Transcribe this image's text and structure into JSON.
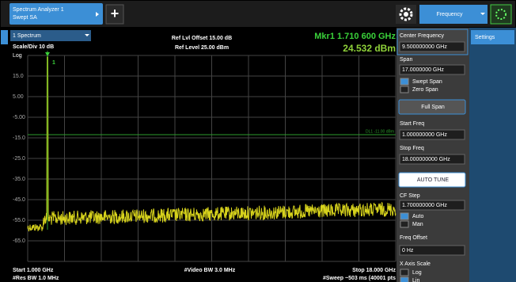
{
  "tab": {
    "title": "Spectrum Analyzer 1",
    "subtitle": "Swept SA",
    "add": "+"
  },
  "mode_button": "Frequency",
  "display": {
    "window": "1 Spectrum",
    "scale": "Scale/Div 10 dB",
    "scale_type": "Log",
    "ref_offset": "Ref Lvl Offset 15.00 dB",
    "ref_level": "Ref Level 25.00 dBm",
    "marker_freq": "Mkr1  1.710 600 GHz",
    "marker_amp": "24.532 dBm",
    "marker_label": "1",
    "y_labels": [
      "15.0",
      "5.00",
      "-5.00",
      "-15.0",
      "-25.0",
      "-35.0",
      "-45.0",
      "-55.0",
      "-65.0"
    ],
    "display_line": "DL1 -11.00 dBm",
    "start": "Start 1.000 GHz",
    "res_bw": "#Res BW 1.0 MHz",
    "video_bw": "#Video BW 3.0 MHz",
    "stop": "Stop 18.000 GHz",
    "sweep": "#Sweep ~503 ms (40001 pts"
  },
  "menu": {
    "center_label": "Center Frequency",
    "center_value": "9.500000000 GHz",
    "span_label": "Span",
    "span_value": "17.0000000 GHz",
    "swept_span": "Swept Span",
    "zero_span": "Zero Span",
    "full_span": "Full Span",
    "start_label": "Start Freq",
    "start_value": "1.000000000 GHz",
    "stop_label": "Stop Freq",
    "stop_value": "18.000000000 GHz",
    "auto_tune": "AUTO TUNE",
    "cf_step_label": "CF Step",
    "cf_step_value": "1.700000000 GHz",
    "auto": "Auto",
    "man": "Man",
    "offset_label": "Freq Offset",
    "offset_value": "0 Hz",
    "x_scale_label": "X Axis Scale",
    "log": "Log",
    "lin": "Lin"
  },
  "side_tab": "Settings"
}
